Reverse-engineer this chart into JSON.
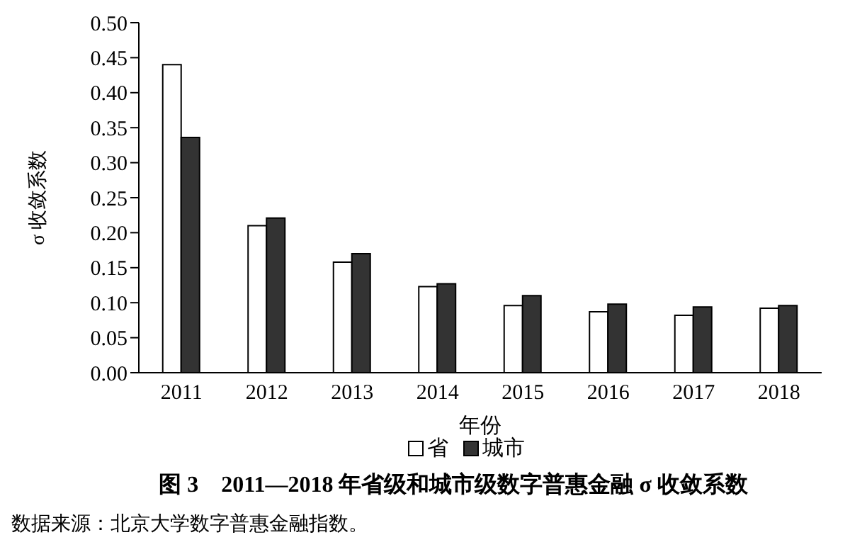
{
  "chart_data": {
    "type": "bar",
    "title": "图 3　2011—2018 年省级和城市级数字普惠金融 σ 收敛系数",
    "xlabel": "年份",
    "ylabel": "σ 收敛系数",
    "categories": [
      "2011",
      "2012",
      "2013",
      "2014",
      "2015",
      "2016",
      "2017",
      "2018"
    ],
    "series": [
      {
        "name": "省",
        "color": "#ffffff",
        "values": [
          0.44,
          0.21,
          0.158,
          0.123,
          0.096,
          0.087,
          0.082,
          0.092
        ]
      },
      {
        "name": "城市",
        "color": "#333333",
        "values": [
          0.336,
          0.221,
          0.17,
          0.127,
          0.11,
          0.098,
          0.094,
          0.096
        ]
      }
    ],
    "ylim": [
      0,
      0.5
    ],
    "yticks": [
      {
        "value": 0,
        "label": "0.00"
      },
      {
        "value": 0.05,
        "label": "0.05"
      },
      {
        "value": 0.1,
        "label": "0.10"
      },
      {
        "value": 0.15,
        "label": "0.15"
      },
      {
        "value": 0.2,
        "label": "0.20"
      },
      {
        "value": 0.25,
        "label": "0.25"
      },
      {
        "value": 0.3,
        "label": "0.30"
      },
      {
        "value": 0.35,
        "label": "0.35"
      },
      {
        "value": 0.4,
        "label": "0.40"
      },
      {
        "value": 0.45,
        "label": "0.45"
      },
      {
        "value": 0.5,
        "label": "0.50"
      }
    ],
    "grid": false,
    "legend": "bottom",
    "annotations": [
      "数据来源：北京大学数字普惠金融指数。"
    ]
  }
}
